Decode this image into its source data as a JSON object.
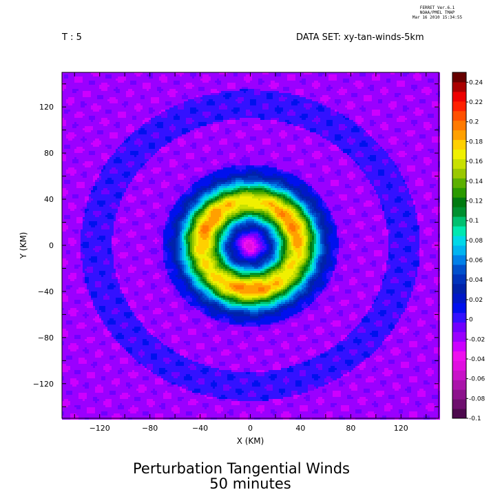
{
  "header": {
    "software": "FERRET  Ver.6.1",
    "org": "NOAA/PMEL TMAP",
    "timestamp": "Mar 16 2010 15:34:55",
    "time_label": "T : 5",
    "dataset_label": "DATA SET: xy-tan-winds-5km"
  },
  "title": {
    "line1": "Perturbation Tangential Winds",
    "line2": "50 minutes"
  },
  "chart_data": {
    "type": "heatmap",
    "xlabel": "X (KM)",
    "ylabel": "Y (KM)",
    "xlim": [
      -150,
      150
    ],
    "ylim": [
      -150,
      150
    ],
    "x_ticks": [
      -120,
      -80,
      -40,
      0,
      40,
      80,
      120
    ],
    "y_ticks": [
      120,
      80,
      40,
      0,
      -40,
      -80,
      -120
    ],
    "colorbar": {
      "levels": [
        -0.1,
        -0.09,
        -0.08,
        -0.07,
        -0.06,
        -0.05,
        -0.04,
        -0.03,
        -0.02,
        -0.01,
        0,
        0.01,
        0.02,
        0.03,
        0.04,
        0.05,
        0.06,
        0.07,
        0.08,
        0.09,
        0.1,
        0.11,
        0.12,
        0.13,
        0.14,
        0.15,
        0.16,
        0.17,
        0.18,
        0.19,
        0.2,
        0.21,
        0.22,
        0.23,
        0.24,
        0.25
      ],
      "tick_labels": [
        "0.24",
        "0.22",
        "0.2",
        "0.18",
        "0.16",
        "0.14",
        "0.12",
        "0.1",
        "0.08",
        "0.06",
        "0.04",
        "0.02",
        "0",
        "-0.02",
        "-0.04",
        "-0.06",
        "-0.08",
        "-0.1"
      ],
      "colors": [
        "#4d0a4d",
        "#6e0f6e",
        "#8c128c",
        "#aa14aa",
        "#c812c8",
        "#e00de0",
        "#ee10ee",
        "#cc00ff",
        "#9a00ff",
        "#7000ff",
        "#3311ff",
        "#0010ee",
        "#0018c8",
        "#0022aa",
        "#0033bb",
        "#0050cc",
        "#0080e8",
        "#00b4f0",
        "#00d8e8",
        "#00e8b0",
        "#00c070",
        "#009030",
        "#007a10",
        "#2a9a00",
        "#5cb000",
        "#9ac800",
        "#c8e000",
        "#f0f000",
        "#ffd000",
        "#ffa000",
        "#ff7a00",
        "#ff5000",
        "#ff2000",
        "#ee0000",
        "#aa0000",
        "#660000"
      ]
    },
    "field": {
      "description_values": "tangential wind perturbation pattern",
      "center": [
        0,
        0
      ],
      "ring_peak_radius_km": 38,
      "ring_peak_value": 0.19,
      "inner_min_value": -0.05,
      "background_values": [
        -0.02,
        0.0
      ]
    }
  }
}
